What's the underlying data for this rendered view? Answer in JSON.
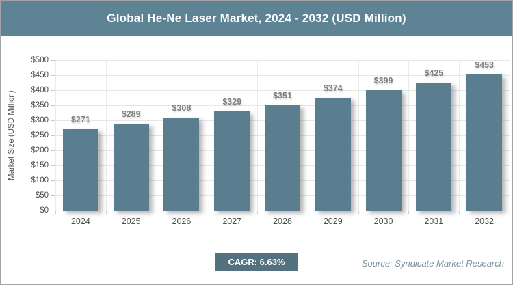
{
  "chart_data": {
    "type": "bar",
    "title": "Global He-Ne Laser Market, 2024 - 2032 (USD Million)",
    "categories": [
      "2024",
      "2025",
      "2026",
      "2027",
      "2028",
      "2029",
      "2030",
      "2031",
      "2032"
    ],
    "values": [
      271,
      289,
      308,
      329,
      351,
      374,
      399,
      425,
      453
    ],
    "value_labels": [
      "$271",
      "$289",
      "$308",
      "$329",
      "$351",
      "$374",
      "$399",
      "$425",
      "$453"
    ],
    "xlabel": "",
    "ylabel": "Market Size (USD Million)",
    "ylim": [
      0,
      500
    ],
    "ytick_step": 50,
    "ytick_labels": [
      "$0",
      "$50",
      "$100",
      "$150",
      "$200",
      "$250",
      "$300",
      "$350",
      "$400",
      "$450",
      "$500"
    ],
    "grid": true,
    "legend": false
  },
  "footer": {
    "cagr": "CAGR: 6.63%",
    "source": "Source: Syndicate Market Research"
  },
  "colors": {
    "header_bg": "#5E8394",
    "bar": "#5A7D8F",
    "badge_bg": "#53717F",
    "grid": "#E6E6E6",
    "value_label": "#7F7F7F",
    "tick_label": "#4D4D4D"
  }
}
